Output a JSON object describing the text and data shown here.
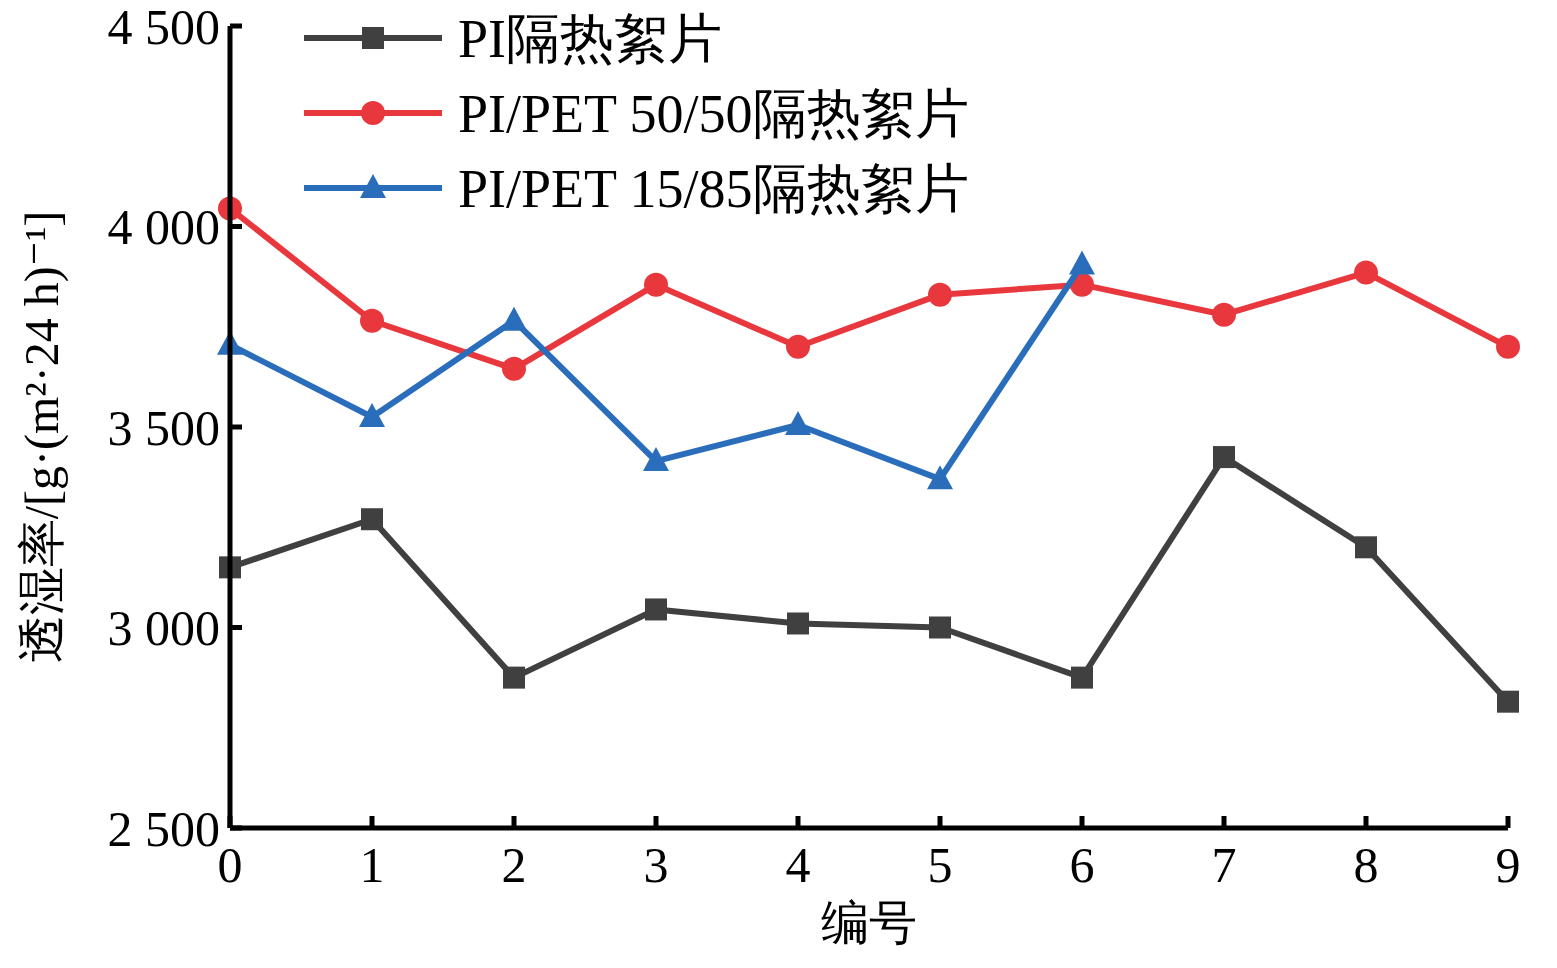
{
  "chart_data": {
    "type": "line",
    "xlabel": "编号",
    "ylabel": "透湿率/[g·(m²·24 h)⁻¹]",
    "xlim": [
      0,
      9
    ],
    "xticks": [
      0,
      1,
      2,
      3,
      4,
      5,
      6,
      7,
      8,
      9
    ],
    "ylim": [
      2500,
      4500
    ],
    "yticks": [
      {
        "value": 2500,
        "label": "2 500"
      },
      {
        "value": 3000,
        "label": "3 000"
      },
      {
        "value": 3500,
        "label": "3 500"
      },
      {
        "value": 4000,
        "label": "4 000"
      },
      {
        "value": 4500,
        "label": "4 500"
      }
    ],
    "x": [
      0,
      1,
      2,
      3,
      4,
      5,
      6,
      7,
      8,
      9
    ],
    "grid": false,
    "legend": "top left",
    "series": [
      {
        "name": "PI隔热絮片",
        "color": "#404040",
        "marker": "square",
        "values": [
          3150,
          3270,
          2875,
          3045,
          3010,
          3000,
          2875,
          3425,
          3200,
          2815
        ]
      },
      {
        "name": "PI/PET 50/50隔热絮片",
        "color": "#e8383d",
        "marker": "circle",
        "values": [
          4045,
          3765,
          3645,
          3855,
          3700,
          3830,
          3855,
          3780,
          3885,
          3700
        ]
      },
      {
        "name": "PI/PET 15/85隔热絮片",
        "color": "#2a6ebb",
        "marker": "triangle",
        "values": [
          3705,
          3525,
          3765,
          3415,
          3505,
          3370,
          3905,
          null,
          null,
          null
        ]
      }
    ]
  }
}
